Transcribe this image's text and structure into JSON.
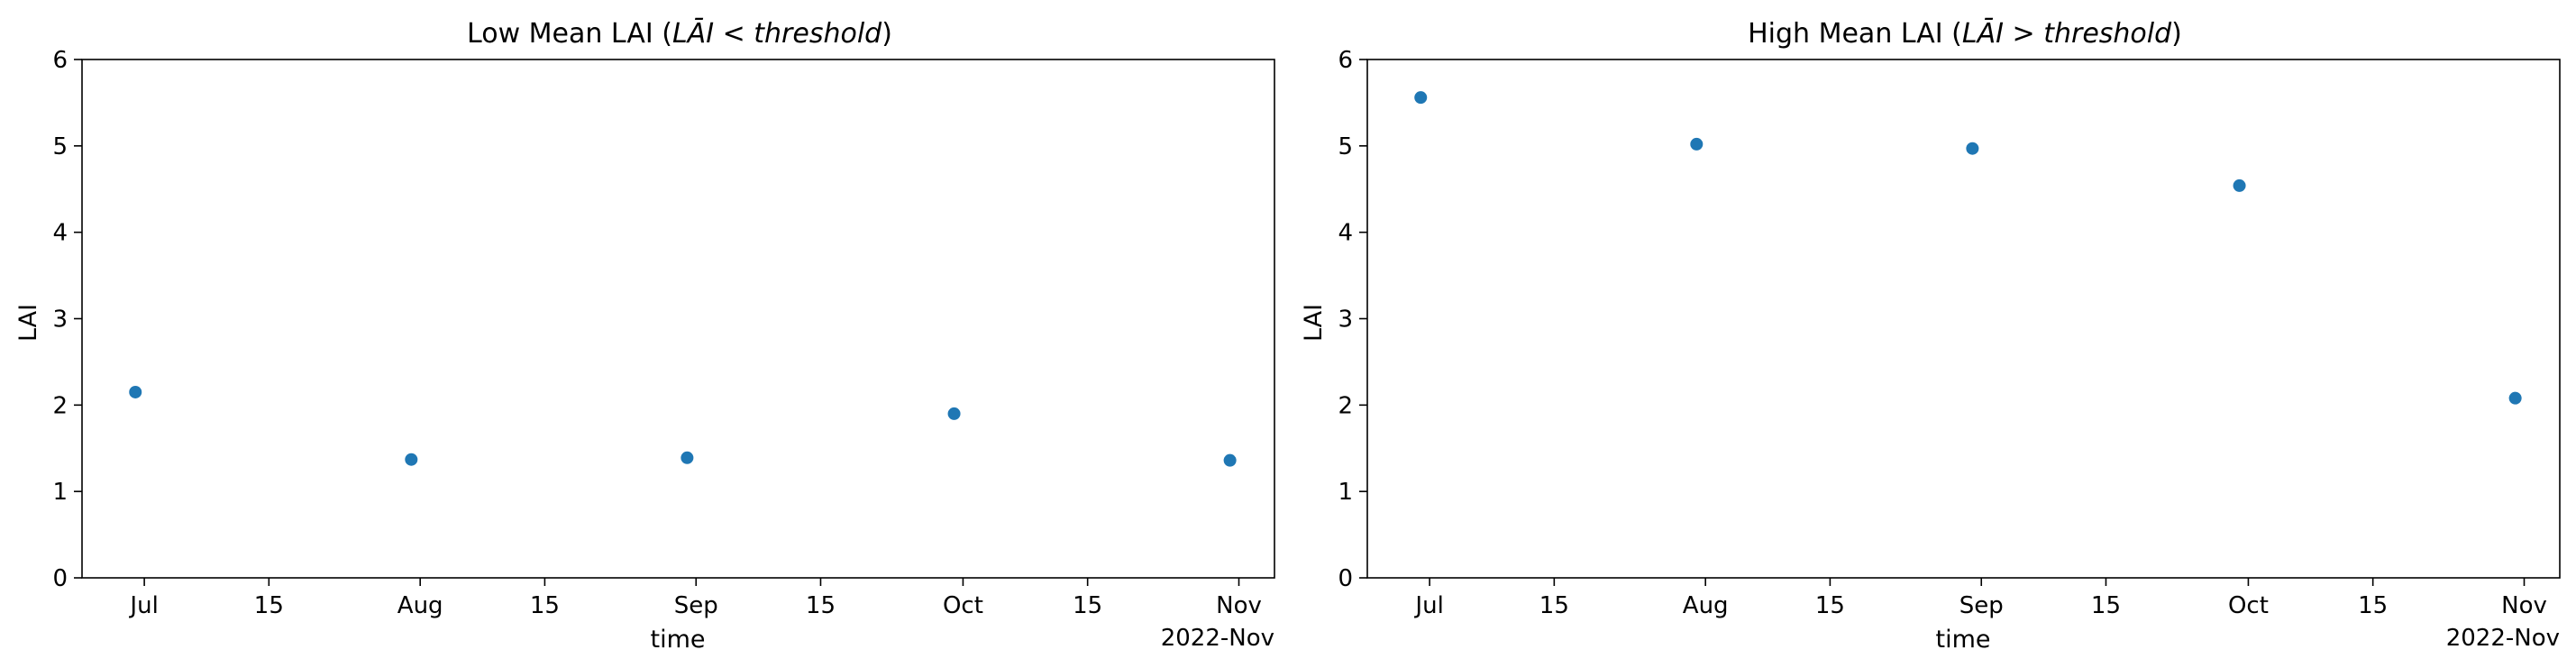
{
  "chart_data": [
    {
      "type": "scatter",
      "title": "Low Mean LAI (LĀI < threshold)",
      "title_parts": [
        "Low Mean LAI (",
        "LĀI",
        " < ",
        "threshold",
        ")"
      ],
      "xlabel": "time",
      "ylabel": "LAI",
      "x_axis_type": "date",
      "xlim": [
        "2022-06-24",
        "2022-11-05"
      ],
      "ylim": [
        0,
        6
      ],
      "yticks": [
        0,
        1,
        2,
        3,
        4,
        5,
        6
      ],
      "xticks": [
        {
          "date": "2022-07-01",
          "label": "Jul"
        },
        {
          "date": "2022-07-15",
          "label": "15"
        },
        {
          "date": "2022-08-01",
          "label": "Aug"
        },
        {
          "date": "2022-08-15",
          "label": "15"
        },
        {
          "date": "2022-09-01",
          "label": "Sep"
        },
        {
          "date": "2022-09-15",
          "label": "15"
        },
        {
          "date": "2022-10-01",
          "label": "Oct"
        },
        {
          "date": "2022-10-15",
          "label": "15"
        },
        {
          "date": "2022-11-01",
          "label": "Nov"
        }
      ],
      "x_offset_label": "2022-Nov",
      "grid": false,
      "color": "#1f77b4",
      "series": [
        {
          "x": [
            "2022-06-30",
            "2022-07-31",
            "2022-08-31",
            "2022-09-30",
            "2022-10-31"
          ],
          "y": [
            2.15,
            1.37,
            1.39,
            1.9,
            1.36
          ]
        }
      ]
    },
    {
      "type": "scatter",
      "title": "High Mean LAI (LĀI > threshold)",
      "title_parts": [
        "High Mean LAI (",
        "LĀI",
        " > ",
        "threshold",
        ")"
      ],
      "xlabel": "time",
      "ylabel": "LAI",
      "x_axis_type": "date",
      "xlim": [
        "2022-06-24",
        "2022-11-05"
      ],
      "ylim": [
        0,
        6
      ],
      "yticks": [
        0,
        1,
        2,
        3,
        4,
        5,
        6
      ],
      "xticks": [
        {
          "date": "2022-07-01",
          "label": "Jul"
        },
        {
          "date": "2022-07-15",
          "label": "15"
        },
        {
          "date": "2022-08-01",
          "label": "Aug"
        },
        {
          "date": "2022-08-15",
          "label": "15"
        },
        {
          "date": "2022-09-01",
          "label": "Sep"
        },
        {
          "date": "2022-09-15",
          "label": "15"
        },
        {
          "date": "2022-10-01",
          "label": "Oct"
        },
        {
          "date": "2022-10-15",
          "label": "15"
        },
        {
          "date": "2022-11-01",
          "label": "Nov"
        }
      ],
      "x_offset_label": "2022-Nov",
      "grid": false,
      "color": "#1f77b4",
      "series": [
        {
          "x": [
            "2022-06-30",
            "2022-07-31",
            "2022-08-31",
            "2022-09-30",
            "2022-10-31"
          ],
          "y": [
            5.56,
            5.02,
            4.97,
            4.54,
            2.08
          ]
        }
      ]
    }
  ]
}
